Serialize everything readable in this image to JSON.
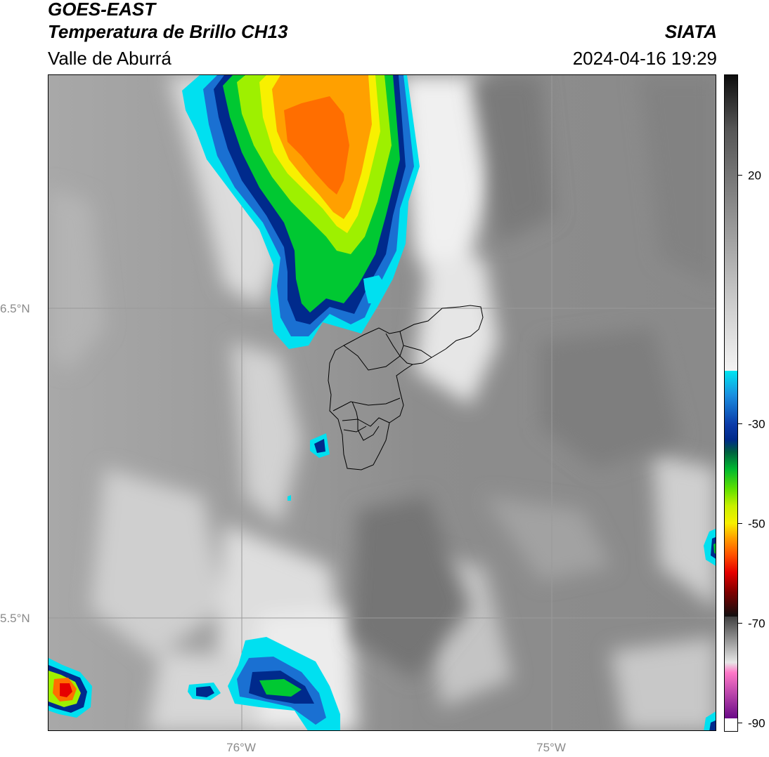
{
  "header": {
    "satellite": "GOES-EAST",
    "product": "Temperatura de Brillo CH13",
    "region": "Valle de Aburrá",
    "brand": "SIATA",
    "timestamp": "2024-04-16 19:29"
  },
  "map": {
    "lat_ticks": [
      {
        "label": "6.5°N",
        "value": 6.5
      },
      {
        "label": "5.5°N",
        "value": 5.5
      }
    ],
    "lon_ticks": [
      {
        "label": "76°W",
        "value": -76.0
      },
      {
        "label": "75°W",
        "value": -75.0
      }
    ],
    "gridlines": true
  },
  "colorbar": {
    "ticks": [
      {
        "label": "20",
        "value": 20
      },
      {
        "label": "-30",
        "value": -30
      },
      {
        "label": "-50",
        "value": -50
      },
      {
        "label": "-70",
        "value": -70
      },
      {
        "label": "-90",
        "value": -90
      }
    ],
    "colors": {
      "warm_dark": "#111111",
      "mid_gray": "#8c8c8c",
      "light_gray": "#f2f2f2",
      "cyan": "#00e5f0",
      "blue": "#1a6fd0",
      "navy": "#002a8a",
      "green": "#00c832",
      "lime": "#9ef000",
      "yellow": "#f8f000",
      "orange": "#ff8c00",
      "red": "#e60000",
      "darkred": "#500000",
      "pink": "#ff78c8",
      "purple": "#7a1090",
      "white": "#ffffff"
    }
  }
}
